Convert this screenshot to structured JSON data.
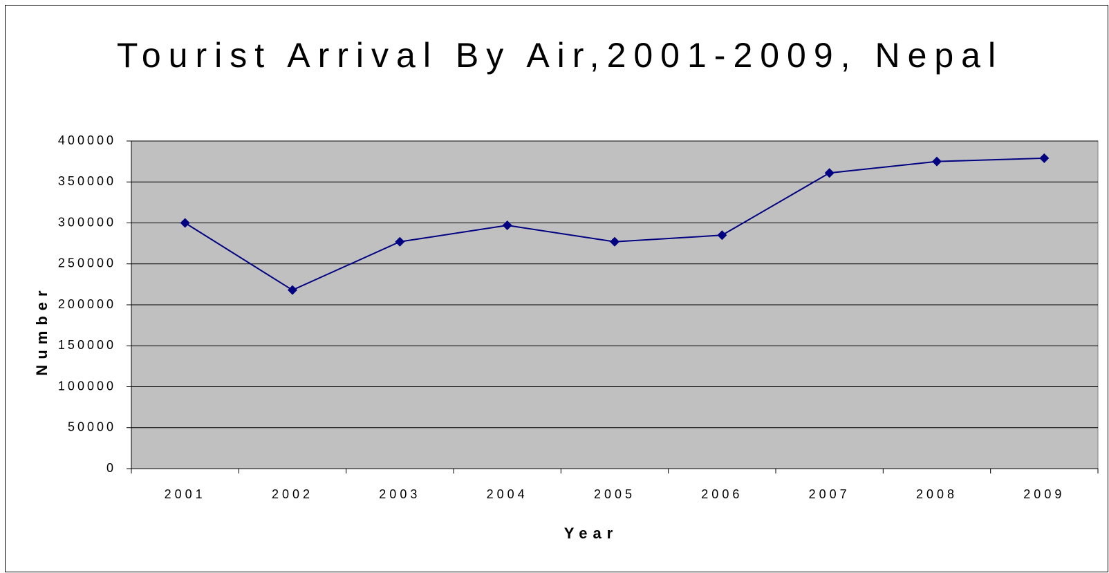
{
  "chart_data": {
    "type": "line",
    "title": "Tourist Arrival By Air,2001-2009, Nepal",
    "x_label": "Year",
    "y_label": "Number",
    "categories": [
      "2001",
      "2002",
      "2003",
      "2004",
      "2005",
      "2006",
      "2007",
      "2008",
      "2009"
    ],
    "series": [
      {
        "name": "Tourist Arrival By Air",
        "color": "#000080",
        "values": [
          300000,
          218000,
          277000,
          297000,
          277000,
          285000,
          361000,
          375000,
          379000
        ]
      }
    ],
    "ylim": [
      0,
      400000
    ],
    "yticks": [
      0,
      50000,
      100000,
      150000,
      200000,
      250000,
      300000,
      350000,
      400000
    ],
    "grid": true,
    "plot_background": "#c0c0c0"
  }
}
